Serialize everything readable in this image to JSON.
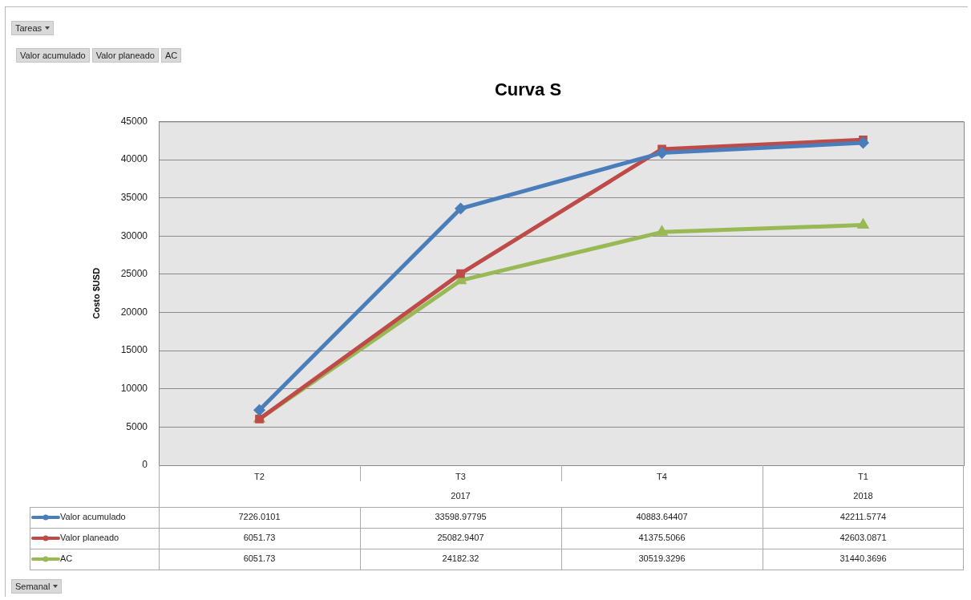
{
  "chart_data": {
    "type": "line",
    "title": "Curva S",
    "ylabel": "Costo $USD",
    "categories": [
      "T2",
      "T3",
      "T4",
      "T1"
    ],
    "series": [
      {
        "name": "Valor acumulado",
        "color": "#4a7ebb",
        "marker": "diamond",
        "values": [
          7226.0101,
          33598.97795,
          40883.64407,
          42211.5774
        ]
      },
      {
        "name": "Valor planeado",
        "color": "#be4b48",
        "marker": "square",
        "values": [
          6051.73,
          25082.9407,
          41375.5066,
          42603.0871
        ]
      },
      {
        "name": "AC",
        "color": "#98b954",
        "marker": "triangle",
        "values": [
          6051.73,
          24182.32,
          30519.3296,
          31440.3696
        ]
      }
    ],
    "ylim": [
      0,
      45000
    ],
    "yticks": [
      0,
      5000,
      10000,
      15000,
      20000,
      25000,
      30000,
      35000,
      40000,
      45000
    ],
    "grid": "y",
    "legend": "bottom",
    "data_labels": true,
    "annotations": [
      "2017",
      "2018",
      "Tareas",
      "Semanal"
    ]
  }
}
